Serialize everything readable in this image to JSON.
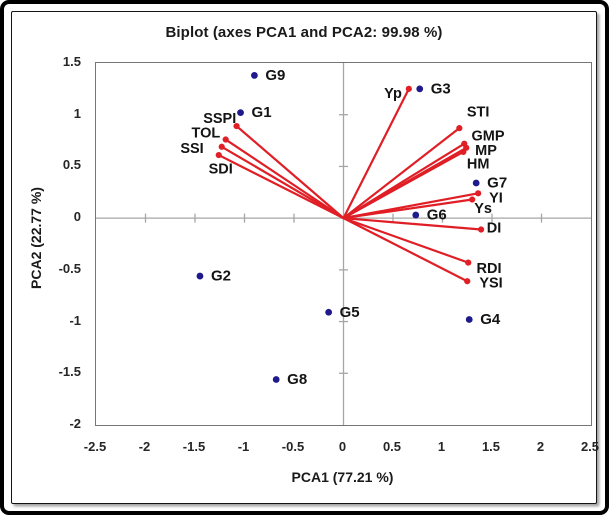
{
  "title": "Biplot (axes PCA1 and PCA2: 99.98 %)",
  "chart_data": {
    "type": "scatter",
    "subtype": "pca-biplot",
    "title": "Biplot (axes PCA1 and PCA2: 99.98 %)",
    "xlabel": "PCA1 (77.21 %)",
    "ylabel": "PCA2 (22.77 %)",
    "xlim": [
      -2.5,
      2.5
    ],
    "ylim": [
      -2,
      1.5
    ],
    "xticks": [
      -2.5,
      -2,
      -1.5,
      -1,
      -0.5,
      0,
      0.5,
      1,
      1.5,
      2,
      2.5
    ],
    "yticks": [
      1.5,
      1,
      0.5,
      0,
      -0.5,
      -1,
      -1.5,
      -2
    ],
    "grid": false,
    "legend": "none",
    "colors": {
      "vector": "#e01e25",
      "point": "#1f1a8c",
      "axis_line": "#a6a6a6",
      "plot_border": "#767676",
      "label_text": "#141414"
    },
    "points": [
      {
        "label": "G9",
        "x": -0.9,
        "y": 1.38
      },
      {
        "label": "G1",
        "x": -1.04,
        "y": 1.02
      },
      {
        "label": "G3",
        "x": 0.77,
        "y": 1.25
      },
      {
        "label": "G7",
        "x": 1.34,
        "y": 0.34
      },
      {
        "label": "G6",
        "x": 0.73,
        "y": 0.03
      },
      {
        "label": "G2",
        "x": -1.45,
        "y": -0.56
      },
      {
        "label": "G5",
        "x": -0.15,
        "y": -0.91
      },
      {
        "label": "G8",
        "x": -0.68,
        "y": -1.56
      },
      {
        "label": "G4",
        "x": 1.27,
        "y": -0.98
      }
    ],
    "vectors": [
      {
        "label": "Yp",
        "x": 0.66,
        "y": 1.25,
        "lx": 0.5,
        "ly": 1.2
      },
      {
        "label": "STI",
        "x": 1.17,
        "y": 0.87,
        "lx": 1.36,
        "ly": 1.02
      },
      {
        "label": "GMP",
        "x": 1.22,
        "y": 0.72,
        "lx": 1.46,
        "ly": 0.79
      },
      {
        "label": "MP",
        "x": 1.24,
        "y": 0.68,
        "lx": 1.44,
        "ly": 0.65
      },
      {
        "label": "HM",
        "x": 1.21,
        "y": 0.64,
        "lx": 1.36,
        "ly": 0.52
      },
      {
        "label": "YI",
        "x": 1.36,
        "y": 0.24,
        "lx": 1.54,
        "ly": 0.19
      },
      {
        "label": "Ys",
        "x": 1.3,
        "y": 0.18,
        "lx": 1.41,
        "ly": 0.09
      },
      {
        "label": "DI",
        "x": 1.39,
        "y": -0.11,
        "lx": 1.52,
        "ly": -0.1
      },
      {
        "label": "RDI",
        "x": 1.26,
        "y": -0.43,
        "lx": 1.47,
        "ly": -0.49
      },
      {
        "label": "YSI",
        "x": 1.25,
        "y": -0.61,
        "lx": 1.49,
        "ly": -0.63
      },
      {
        "label": "SSPI",
        "x": -1.08,
        "y": 0.89,
        "lx": -1.25,
        "ly": 0.96
      },
      {
        "label": "TOL",
        "x": -1.19,
        "y": 0.76,
        "lx": -1.39,
        "ly": 0.82
      },
      {
        "label": "SSI",
        "x": -1.23,
        "y": 0.69,
        "lx": -1.53,
        "ly": 0.67
      },
      {
        "label": "SDI",
        "x": -1.26,
        "y": 0.61,
        "lx": -1.24,
        "ly": 0.47
      }
    ]
  }
}
